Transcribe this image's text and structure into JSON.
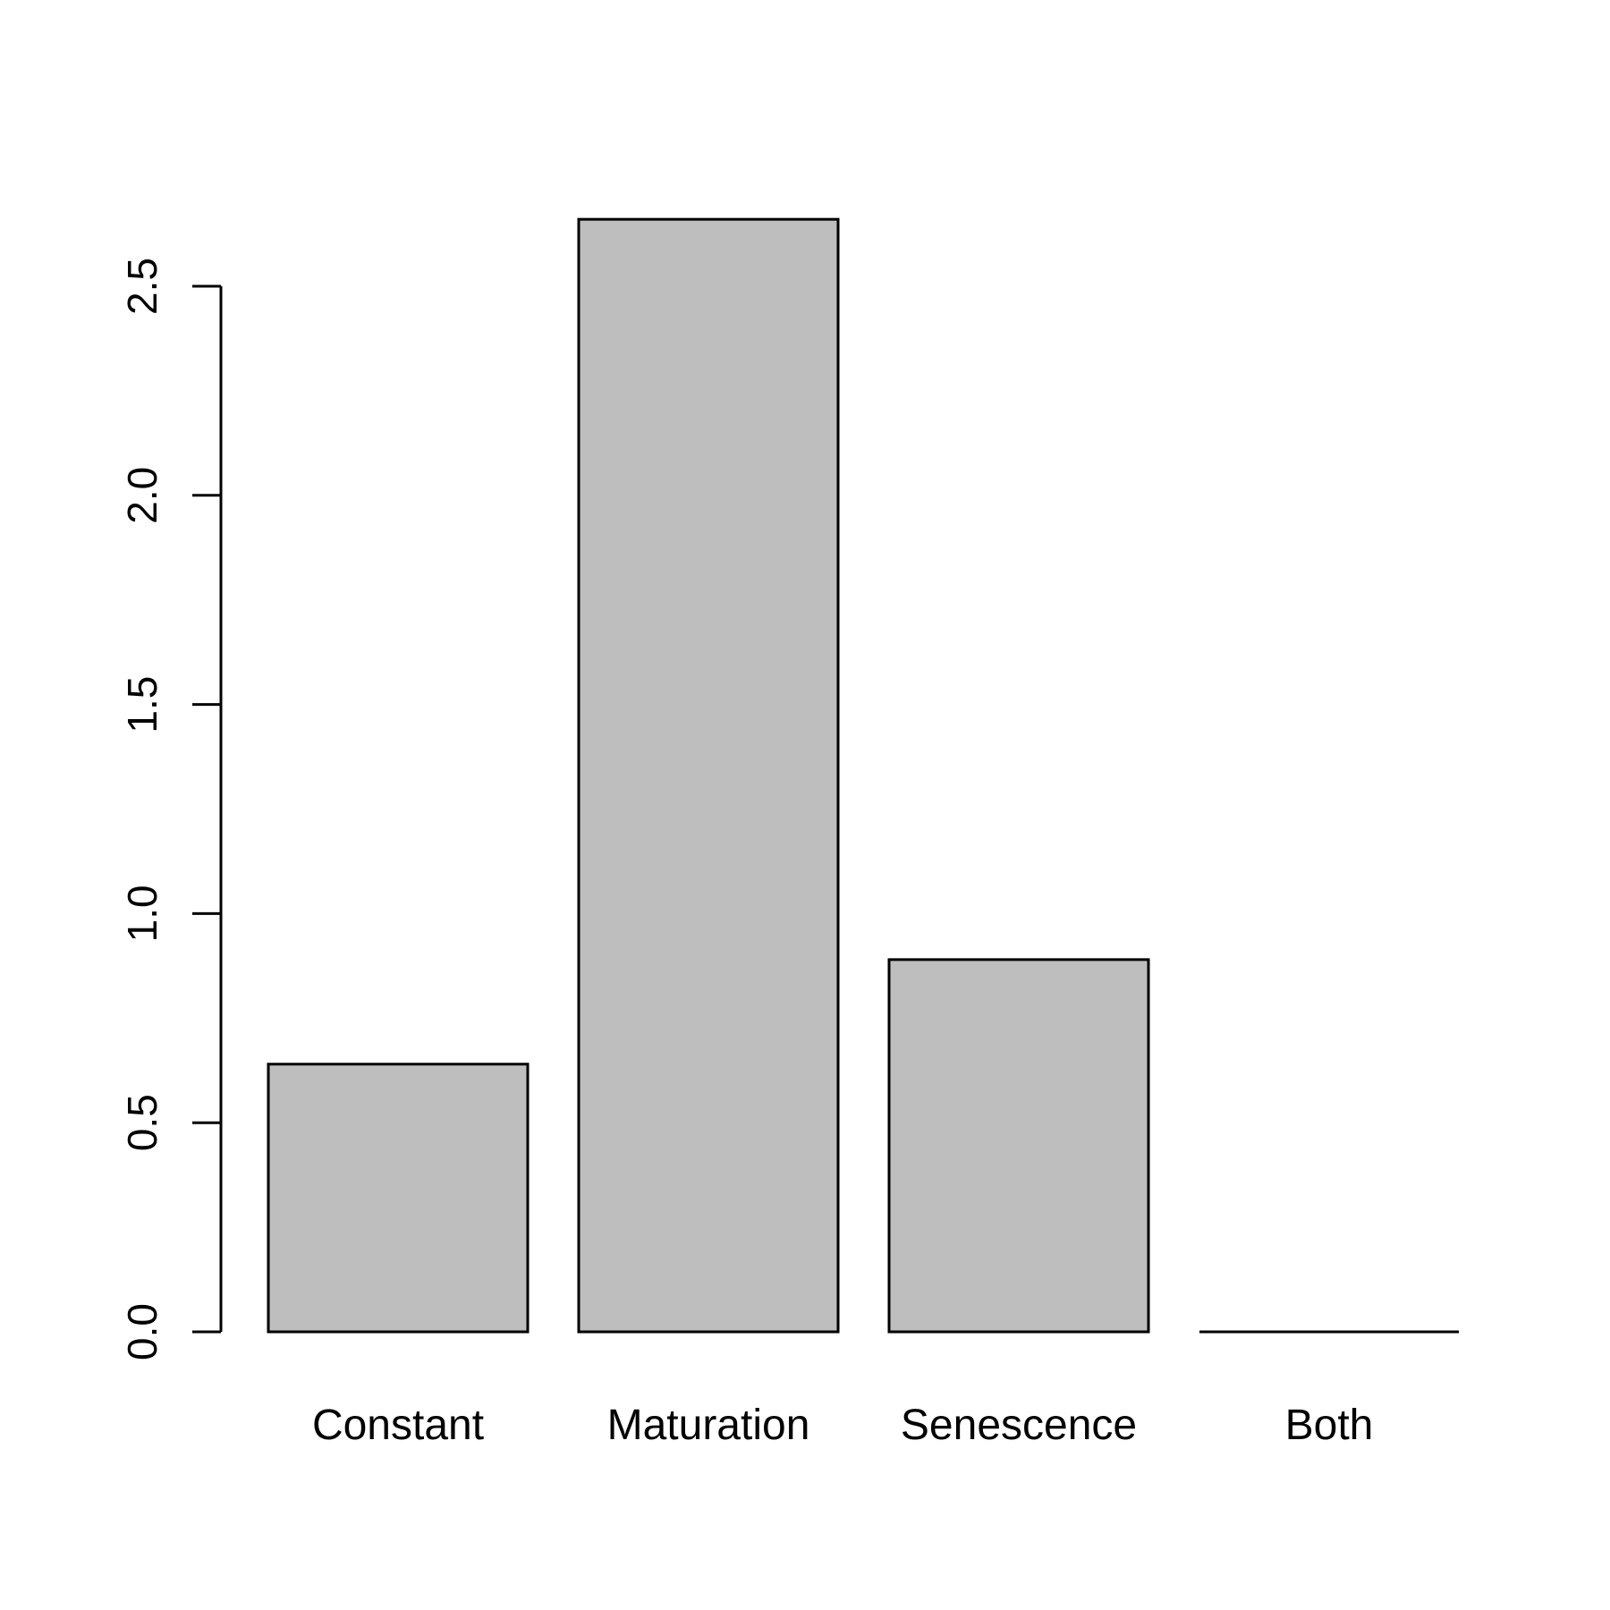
{
  "chart_data": {
    "type": "bar",
    "categories": [
      "Constant",
      "Maturation",
      "Senescence",
      "Both"
    ],
    "values": [
      0.64,
      2.66,
      0.89,
      0.0
    ],
    "title": "",
    "xlabel": "",
    "ylabel": "",
    "ylim": [
      0,
      2.66
    ],
    "yticks": [
      "0.0",
      "0.5",
      "1.0",
      "1.5",
      "2.0",
      "2.5"
    ],
    "bar_color": "#bebebe",
    "grid": false
  }
}
